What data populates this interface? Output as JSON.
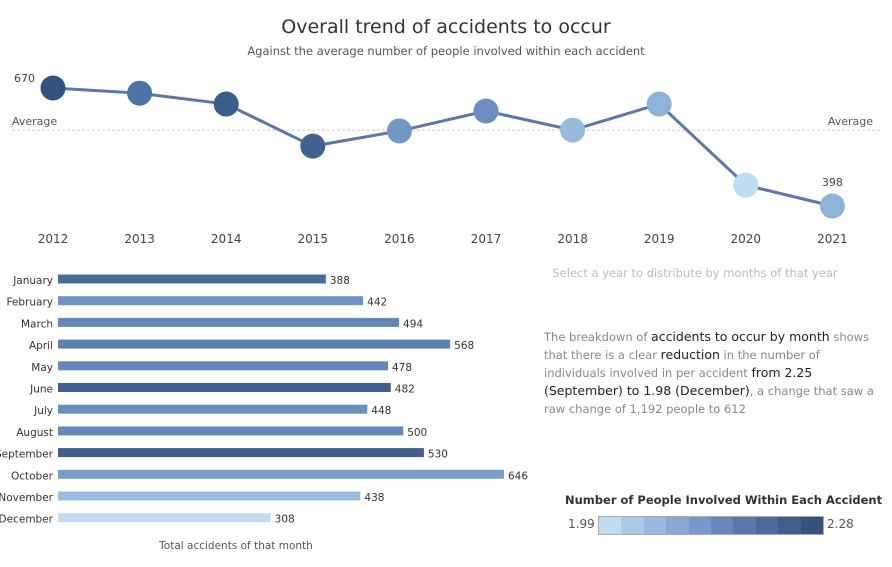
{
  "title": "Overall trend of accidents to occur",
  "subtitle": "Against the average number of people involved within each accident",
  "hint": "Select a year to distribute by months of that year",
  "narrative": [
    {
      "t": "The breakdown of ",
      "b": false
    },
    {
      "t": "accidents to occur by month",
      "b": true
    },
    {
      "t": " shows that there is a clear ",
      "b": false
    },
    {
      "t": "reduction",
      "b": true
    },
    {
      "t": " in the number of individuals involved in per accident ",
      "b": false
    },
    {
      "t": "from 2.25 (September) to 1.98 (December)",
      "b": true
    },
    {
      "t": ",  a change that saw a raw change of 1,192 people  to  612",
      "b": false
    }
  ],
  "legend": {
    "title": "Number of People Involved Within Each Accident",
    "min": "1.99",
    "max": "2.28",
    "colors": [
      "#c0dcf0",
      "#a9cbe8",
      "#97bbdf",
      "#86aad5",
      "#7599c8",
      "#6689ba",
      "#5879aa",
      "#4b6b9b",
      "#3f5e8c",
      "#34527e"
    ]
  },
  "chart_data": [
    {
      "type": "line",
      "x": [
        "2012",
        "2013",
        "2014",
        "2015",
        "2016",
        "2017",
        "2018",
        "2019",
        "2020",
        "2021"
      ],
      "values": [
        670,
        658,
        633,
        536,
        571,
        617,
        573,
        633,
        446,
        398
      ],
      "colors": [
        "#34527e",
        "#4e74a6",
        "#3b5d8c",
        "#41628f",
        "#7197c4",
        "#6b8fbf",
        "#98bbdd",
        "#8fb2d9",
        "#c0dcf0",
        "#8fb2d9"
      ],
      "labels": {
        "first": "670",
        "last": "398"
      },
      "reference_line": {
        "label": "Average",
        "value": 573
      },
      "line_color": "#5a79a8",
      "ylim": [
        380,
        690
      ]
    },
    {
      "type": "bar",
      "orientation": "horizontal",
      "categories": [
        "January",
        "February",
        "March",
        "April",
        "May",
        "June",
        "July",
        "August",
        "September",
        "October",
        "November",
        "December"
      ],
      "values": [
        388,
        442,
        494,
        568,
        478,
        482,
        448,
        500,
        530,
        646,
        438,
        308
      ],
      "colors": [
        "#4a6c9b",
        "#6f94c0",
        "#6488b8",
        "#5d80b0",
        "#6488b8",
        "#3f5f8f",
        "#6a8fbd",
        "#6488b8",
        "#3f5f8f",
        "#7a9ec9",
        "#9bbde0",
        "#c0dcf0"
      ],
      "xlabel": "Total accidents of that month",
      "xlim": [
        0,
        646
      ]
    }
  ]
}
